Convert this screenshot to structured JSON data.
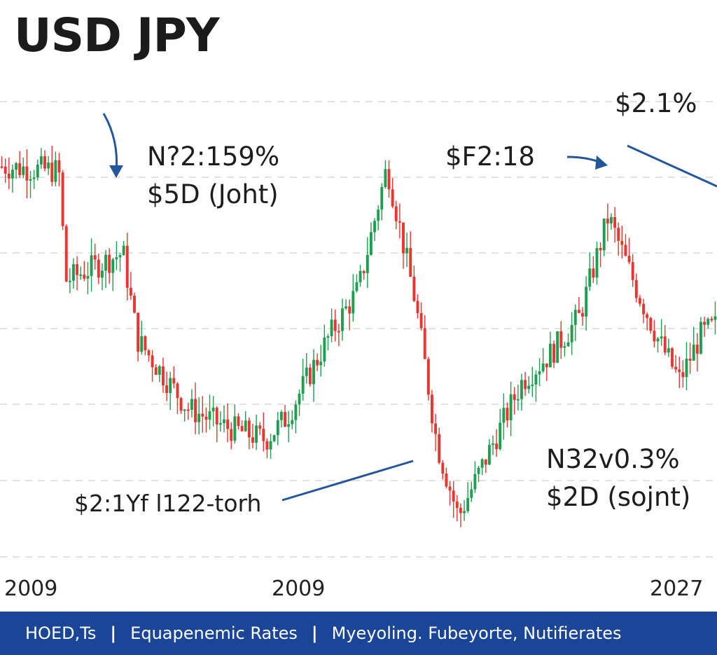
{
  "title": "USD JPY",
  "footer": {
    "items": [
      "HOED,Ts",
      "Equapenemic Rates",
      "Myeyoling. Fubeyorte, Nutifierates"
    ],
    "separator": "|"
  },
  "colors": {
    "up": "#1f9e4f",
    "down": "#e8352e",
    "arrow": "#24579a",
    "grid": "#d9d9d9",
    "footer_bg": "#1b4597"
  },
  "chart_data": {
    "type": "candlestick",
    "title": "USD JPY",
    "x_ticks": [
      "2009",
      "2009",
      "2027"
    ],
    "ylim": [
      0,
      100
    ],
    "grid": "horizontal dashed",
    "legend": "none",
    "waypoints": [
      [
        0,
        85
      ],
      [
        8,
        84
      ],
      [
        9,
        60
      ],
      [
        17,
        66
      ],
      [
        19,
        47
      ],
      [
        26,
        32
      ],
      [
        31,
        28
      ],
      [
        37,
        25
      ],
      [
        40,
        30
      ],
      [
        46,
        48
      ],
      [
        50,
        58
      ],
      [
        54,
        85
      ],
      [
        58,
        55
      ],
      [
        61,
        24
      ],
      [
        64,
        8
      ],
      [
        70,
        28
      ],
      [
        73,
        38
      ],
      [
        77,
        44
      ],
      [
        81,
        52
      ],
      [
        85,
        74
      ],
      [
        89,
        58
      ],
      [
        92,
        47
      ],
      [
        95,
        38
      ],
      [
        98,
        48
      ],
      [
        100,
        50
      ]
    ],
    "annotations": [
      {
        "lines": [
          "N?2:159%",
          "$5D (Joht)"
        ],
        "anchor": "top-left"
      },
      {
        "lines": [
          "$F2:18"
        ],
        "anchor": "top-center"
      },
      {
        "lines": [
          "$2.1%"
        ],
        "anchor": "top-right"
      },
      {
        "lines": [
          "N32v0.3%",
          "$2D (sojnt)"
        ],
        "anchor": "bottom-right"
      },
      {
        "lines": [
          "$2:1Yf l122-torh"
        ],
        "anchor": "bottom-left"
      }
    ]
  }
}
